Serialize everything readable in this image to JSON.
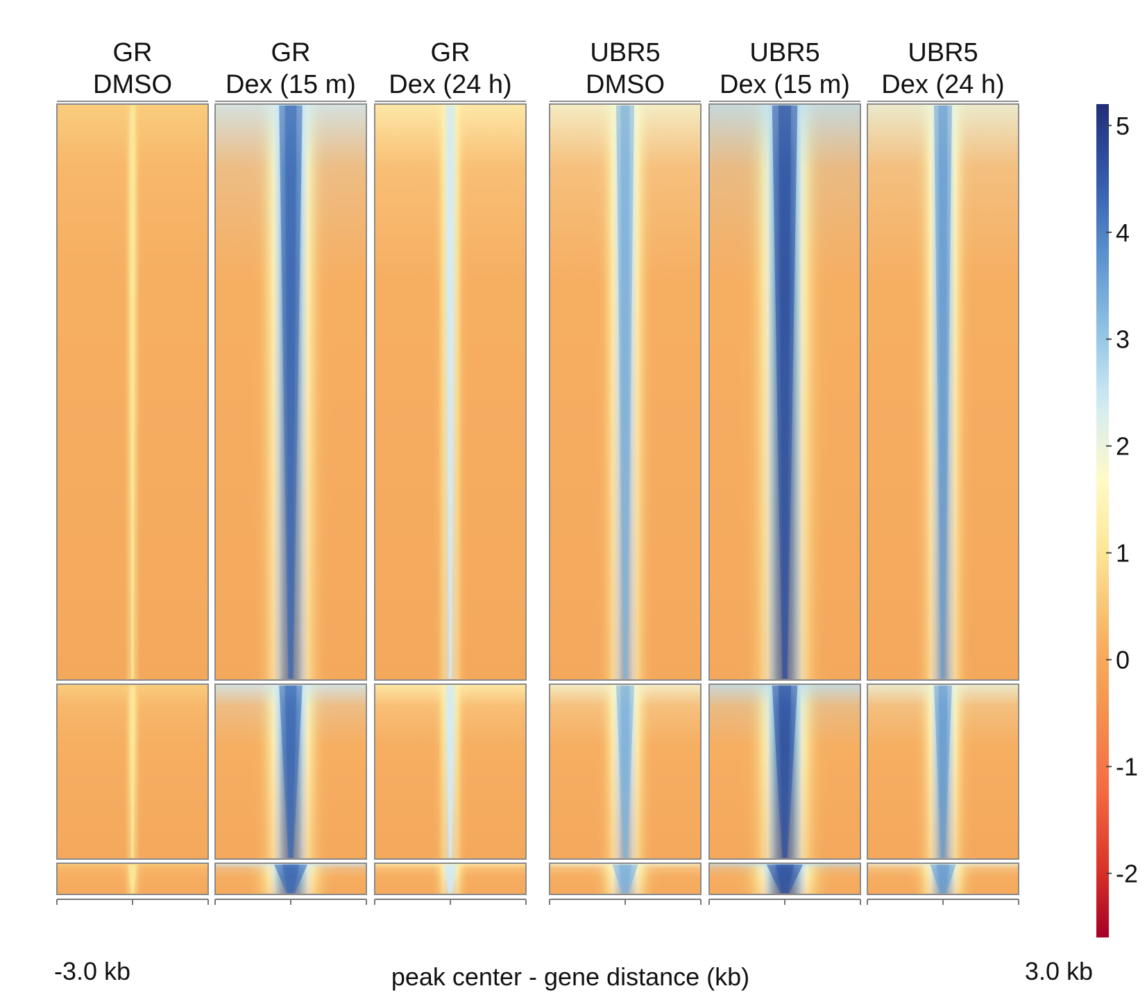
{
  "chart_data": {
    "type": "heatmap",
    "panels": [
      {
        "group": "GR",
        "condition": "DMSO",
        "center_signal": 1.1,
        "spread": 0.06
      },
      {
        "group": "GR",
        "condition": "Dex (15 m)",
        "center_signal": 4.3,
        "spread": 0.22
      },
      {
        "group": "GR",
        "condition": "Dex (24 h)",
        "center_signal": 2.4,
        "spread": 0.1
      },
      {
        "group": "UBR5",
        "condition": "DMSO",
        "center_signal": 3.3,
        "spread": 0.17
      },
      {
        "group": "UBR5",
        "condition": "Dex (15 m)",
        "center_signal": 4.6,
        "spread": 0.24
      },
      {
        "group": "UBR5",
        "condition": "Dex (24 h)",
        "center_signal": 3.6,
        "spread": 0.17
      }
    ],
    "clusters": 3,
    "x_axis": {
      "left_label": "-3.0 kb",
      "right_label": "3.0 kb",
      "xlabel": "peak center - gene distance (kb)"
    },
    "colorbar": {
      "range": [
        -2.6,
        5.2
      ],
      "ticks": [
        "5",
        "4",
        "3",
        "2",
        "1",
        "0",
        "-1",
        "-2"
      ],
      "colors": [
        "#a50026",
        "#d73027",
        "#f46d43",
        "#f7a24f",
        "#fee090",
        "#ffffbf",
        "#e0f3f8",
        "#abd9e9",
        "#74add1",
        "#4575b4",
        "#313695"
      ]
    }
  }
}
